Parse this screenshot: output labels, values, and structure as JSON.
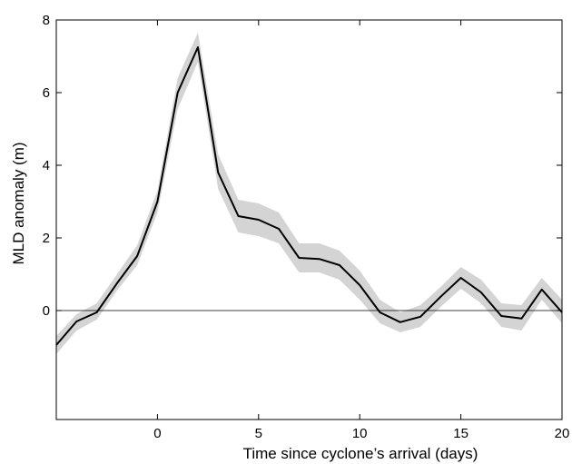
{
  "chart_data": {
    "type": "line",
    "title": "",
    "xlabel": "Time since cyclone’s arrival (days)",
    "ylabel": "MLD anomaly (m)",
    "xlim": [
      -5,
      20
    ],
    "ylim": [
      -3,
      8
    ],
    "xticks": [
      0,
      5,
      10,
      15,
      20
    ],
    "yticks": [
      0,
      2,
      4,
      6,
      8
    ],
    "grid": false,
    "legend": "none",
    "zero_line": 0,
    "series": [
      {
        "x": [
          -5,
          -4,
          -3,
          -2,
          -1,
          0,
          1,
          2,
          3,
          4,
          5,
          6,
          7,
          8,
          9,
          10,
          11,
          12,
          13,
          14,
          15,
          16,
          17,
          18,
          19,
          20
        ],
        "values": [
          -0.95,
          -0.3,
          -0.05,
          0.75,
          1.5,
          3.0,
          6.0,
          7.25,
          3.8,
          2.6,
          2.5,
          2.25,
          1.45,
          1.42,
          1.25,
          0.7,
          -0.05,
          -0.32,
          -0.17,
          0.38,
          0.9,
          0.5,
          -0.15,
          -0.22,
          0.58,
          -0.05
        ],
        "band_lower": [
          -1.2,
          -0.55,
          -0.25,
          0.55,
          1.25,
          2.7,
          5.55,
          6.85,
          3.35,
          2.15,
          2.05,
          1.85,
          1.05,
          1.05,
          0.85,
          0.3,
          -0.35,
          -0.6,
          -0.45,
          0.1,
          0.6,
          0.2,
          -0.45,
          -0.55,
          0.3,
          -0.35
        ],
        "band_upper": [
          -0.7,
          -0.1,
          0.2,
          1.0,
          1.8,
          3.3,
          6.4,
          7.65,
          4.3,
          3.05,
          2.95,
          2.7,
          1.85,
          1.85,
          1.65,
          1.1,
          0.3,
          -0.05,
          0.15,
          0.65,
          1.2,
          0.85,
          0.2,
          0.15,
          0.9,
          0.3
        ],
        "color": "#000000",
        "band_color": "#d4d4d4"
      }
    ]
  }
}
